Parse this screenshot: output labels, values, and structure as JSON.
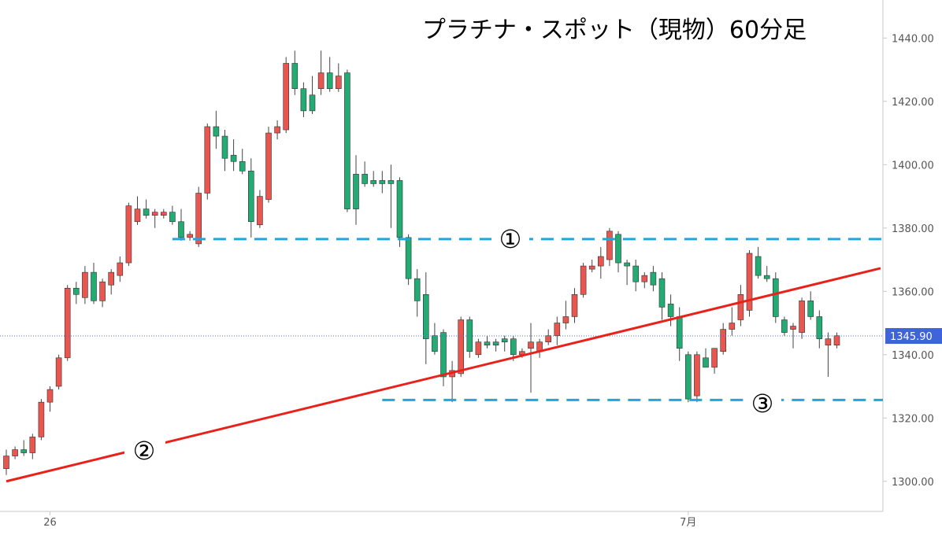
{
  "chart_data": {
    "type": "candlestick",
    "title": "プラチナ・スポット（現物）60分足",
    "categories": [
      null,
      null,
      null,
      null,
      null,
      "26",
      null,
      null,
      null,
      null,
      null,
      null,
      null,
      null,
      null,
      null,
      null,
      null,
      null,
      null,
      null,
      null,
      null,
      null,
      null,
      null,
      null,
      null,
      null,
      null,
      null,
      null,
      null,
      null,
      null,
      null,
      null,
      null,
      null,
      null,
      null,
      null,
      null,
      null,
      null,
      null,
      null,
      null,
      null,
      null,
      null,
      null,
      null,
      null,
      null,
      null,
      null,
      null,
      null,
      null,
      null,
      null,
      null,
      null,
      null,
      null,
      null,
      null,
      null,
      null,
      null,
      null,
      null,
      null,
      null,
      null,
      null,
      null,
      "7月",
      null,
      null,
      null,
      null,
      null,
      null,
      null,
      null,
      null,
      null,
      null,
      null,
      null,
      null,
      null,
      null,
      null
    ],
    "ohlc": [
      [
        1304,
        1310,
        1302,
        1308
      ],
      [
        1308,
        1311,
        1307,
        1310
      ],
      [
        1310,
        1313,
        1308,
        1309
      ],
      [
        1309,
        1315,
        1307,
        1314
      ],
      [
        1314,
        1326,
        1313,
        1325
      ],
      [
        1325,
        1330,
        1322,
        1329
      ],
      [
        1330,
        1340,
        1329,
        1339
      ],
      [
        1339,
        1362,
        1338,
        1361
      ],
      [
        1361,
        1363,
        1356,
        1359
      ],
      [
        1358,
        1368,
        1356,
        1366
      ],
      [
        1366,
        1369,
        1356,
        1357
      ],
      [
        1357,
        1364,
        1355,
        1363
      ],
      [
        1362,
        1367,
        1359,
        1366
      ],
      [
        1365,
        1371,
        1363,
        1369
      ],
      [
        1369,
        1388,
        1368,
        1387
      ],
      [
        1382,
        1390,
        1381,
        1386
      ],
      [
        1386,
        1389,
        1383,
        1384
      ],
      [
        1384,
        1386,
        1380,
        1385
      ],
      [
        1384,
        1386,
        1383,
        1385
      ],
      [
        1385,
        1387,
        1381,
        1382
      ],
      [
        1382,
        1386,
        1376,
        1377
      ],
      [
        1377,
        1379,
        1376,
        1378
      ],
      [
        1375,
        1393,
        1374,
        1391
      ],
      [
        1391,
        1413,
        1389,
        1412
      ],
      [
        1412,
        1417,
        1405,
        1409
      ],
      [
        1409,
        1411,
        1398,
        1402
      ],
      [
        1403,
        1408,
        1398,
        1401
      ],
      [
        1401,
        1405,
        1397,
        1398
      ],
      [
        1398,
        1402,
        1377,
        1382
      ],
      [
        1381,
        1392,
        1380,
        1390
      ],
      [
        1389,
        1412,
        1388,
        1410
      ],
      [
        1410,
        1414,
        1408,
        1412
      ],
      [
        1411,
        1434,
        1410,
        1432
      ],
      [
        1432,
        1436,
        1422,
        1424
      ],
      [
        1424,
        1426,
        1415,
        1417
      ],
      [
        1422,
        1428,
        1416,
        1417
      ],
      [
        1424,
        1436,
        1422,
        1429
      ],
      [
        1429,
        1434,
        1423,
        1424
      ],
      [
        1424,
        1432,
        1423,
        1428
      ],
      [
        1429,
        1430,
        1385,
        1386
      ],
      [
        1397,
        1403,
        1381,
        1386
      ],
      [
        1397,
        1401,
        1393,
        1394
      ],
      [
        1395,
        1398,
        1393,
        1394
      ],
      [
        1395,
        1398,
        1391,
        1394
      ],
      [
        1395,
        1400,
        1380,
        1394
      ],
      [
        1395,
        1396,
        1374,
        1377
      ],
      [
        1377,
        1378,
        1362,
        1364
      ],
      [
        1364,
        1367,
        1352,
        1357
      ],
      [
        1359,
        1366,
        1337,
        1345
      ],
      [
        1346,
        1350,
        1340,
        1341
      ],
      [
        1347,
        1348,
        1330,
        1333
      ],
      [
        1333,
        1338,
        1325,
        1335
      ],
      [
        1334,
        1352,
        1333,
        1351
      ],
      [
        1351,
        1352,
        1339,
        1341
      ],
      [
        1340,
        1345,
        1339,
        1344
      ],
      [
        1344,
        1346,
        1342,
        1343
      ],
      [
        1344,
        1345,
        1341,
        1343
      ],
      [
        1345,
        1346,
        1341,
        1344
      ],
      [
        1345,
        1346,
        1338,
        1340
      ],
      [
        1340,
        1342,
        1339,
        1341
      ],
      [
        1342,
        1350,
        1328,
        1344
      ],
      [
        1341,
        1345,
        1339,
        1344
      ],
      [
        1344,
        1348,
        1343,
        1346
      ],
      [
        1346,
        1352,
        1343,
        1350
      ],
      [
        1350,
        1357,
        1348,
        1352
      ],
      [
        1352,
        1361,
        1350,
        1359
      ],
      [
        1359,
        1369,
        1358,
        1368
      ],
      [
        1367,
        1370,
        1366,
        1368
      ],
      [
        1368,
        1374,
        1364,
        1371
      ],
      [
        1370,
        1380,
        1368,
        1379
      ],
      [
        1378,
        1379,
        1366,
        1369
      ],
      [
        1369,
        1370,
        1362,
        1368
      ],
      [
        1368,
        1370,
        1360,
        1363
      ],
      [
        1363,
        1366,
        1361,
        1365
      ],
      [
        1366,
        1368,
        1360,
        1362
      ],
      [
        1364,
        1366,
        1351,
        1355
      ],
      [
        1356,
        1359,
        1349,
        1352
      ],
      [
        1352,
        1355,
        1338,
        1342
      ],
      [
        1340,
        1341,
        1325,
        1326
      ],
      [
        1327,
        1341,
        1325,
        1340
      ],
      [
        1339,
        1342,
        1336,
        1336
      ],
      [
        1336,
        1342,
        1334,
        1342
      ],
      [
        1341,
        1350,
        1340,
        1348
      ],
      [
        1348,
        1355,
        1346,
        1350
      ],
      [
        1351,
        1362,
        1349,
        1359
      ],
      [
        1354,
        1373,
        1352,
        1372
      ],
      [
        1371,
        1374,
        1364,
        1365
      ],
      [
        1365,
        1368,
        1363,
        1364
      ],
      [
        1364,
        1366,
        1350,
        1352
      ],
      [
        1351,
        1352,
        1346,
        1347
      ],
      [
        1348,
        1350,
        1342,
        1349
      ],
      [
        1347,
        1358,
        1345,
        1357
      ],
      [
        1357,
        1360,
        1351,
        1352
      ],
      [
        1352,
        1354,
        1342,
        1345
      ],
      [
        1343,
        1347,
        1333,
        1345
      ],
      [
        1343,
        1347,
        1342,
        1346
      ]
    ],
    "up_color": "#e8564f",
    "down_color": "#22ab73",
    "ylim": [
      1290.5,
      1452
    ],
    "yticks": [
      {
        "value": 1300,
        "label": "1300.00"
      },
      {
        "value": 1320,
        "label": "1320.00"
      },
      {
        "value": 1340,
        "label": "1340.00"
      },
      {
        "value": 1360,
        "label": "1360.00"
      },
      {
        "value": 1380,
        "label": "1380.00"
      },
      {
        "value": 1400,
        "label": "1400.00"
      },
      {
        "value": 1420,
        "label": "1420.00"
      },
      {
        "value": 1440,
        "label": "1440.00"
      }
    ],
    "last_price": {
      "value": 1345.9,
      "label": "1345.90"
    },
    "levels": [
      {
        "label": "①",
        "value": 1376.5,
        "from": 19
      },
      {
        "label": "③",
        "value": 1325.7,
        "from": 43
      }
    ],
    "trendline": {
      "label": "②",
      "x": [
        0,
        100
      ],
      "y": [
        1300,
        1367.3
      ]
    }
  }
}
